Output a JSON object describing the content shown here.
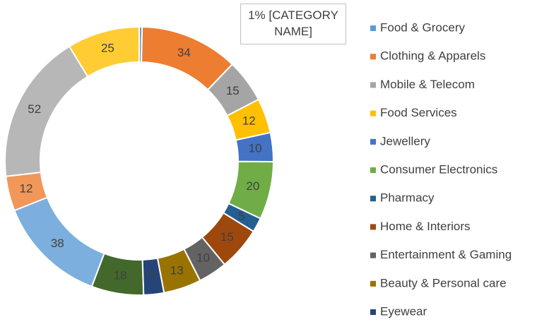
{
  "chart_data": {
    "type": "donut",
    "categories": [
      "Food & Grocery",
      "Clothing & Apparels",
      "Mobile & Telecom",
      "Food Services",
      "Jewellery",
      "Consumer Electronics",
      "Pharmacy",
      "Home &  Interiors",
      "Entertainment & Gaming",
      "Beauty & Personal care",
      "Eyewear",
      null,
      null,
      null,
      null,
      null
    ],
    "values": [
      1,
      34,
      15,
      12,
      10,
      20,
      5,
      15,
      10,
      13,
      7,
      18,
      38,
      12,
      52,
      25
    ],
    "value_labels": [
      "1%  [CATEGORY NAME]",
      "34",
      "15",
      "12",
      "10",
      "20",
      "5",
      "15",
      "10",
      "13",
      "7",
      "18",
      "38",
      "12",
      "52",
      "25"
    ],
    "colors": [
      "#5b9bd5",
      "#ed7d31",
      "#a5a5a5",
      "#ffc000",
      "#4472c4",
      "#70ad47",
      "#255e91",
      "#9e480e",
      "#636363",
      "#997300",
      "#264478",
      "#43682b",
      "#7cafdd",
      "#f1975a",
      "#b7b7b7",
      "#ffcd33"
    ],
    "legend": "right"
  }
}
